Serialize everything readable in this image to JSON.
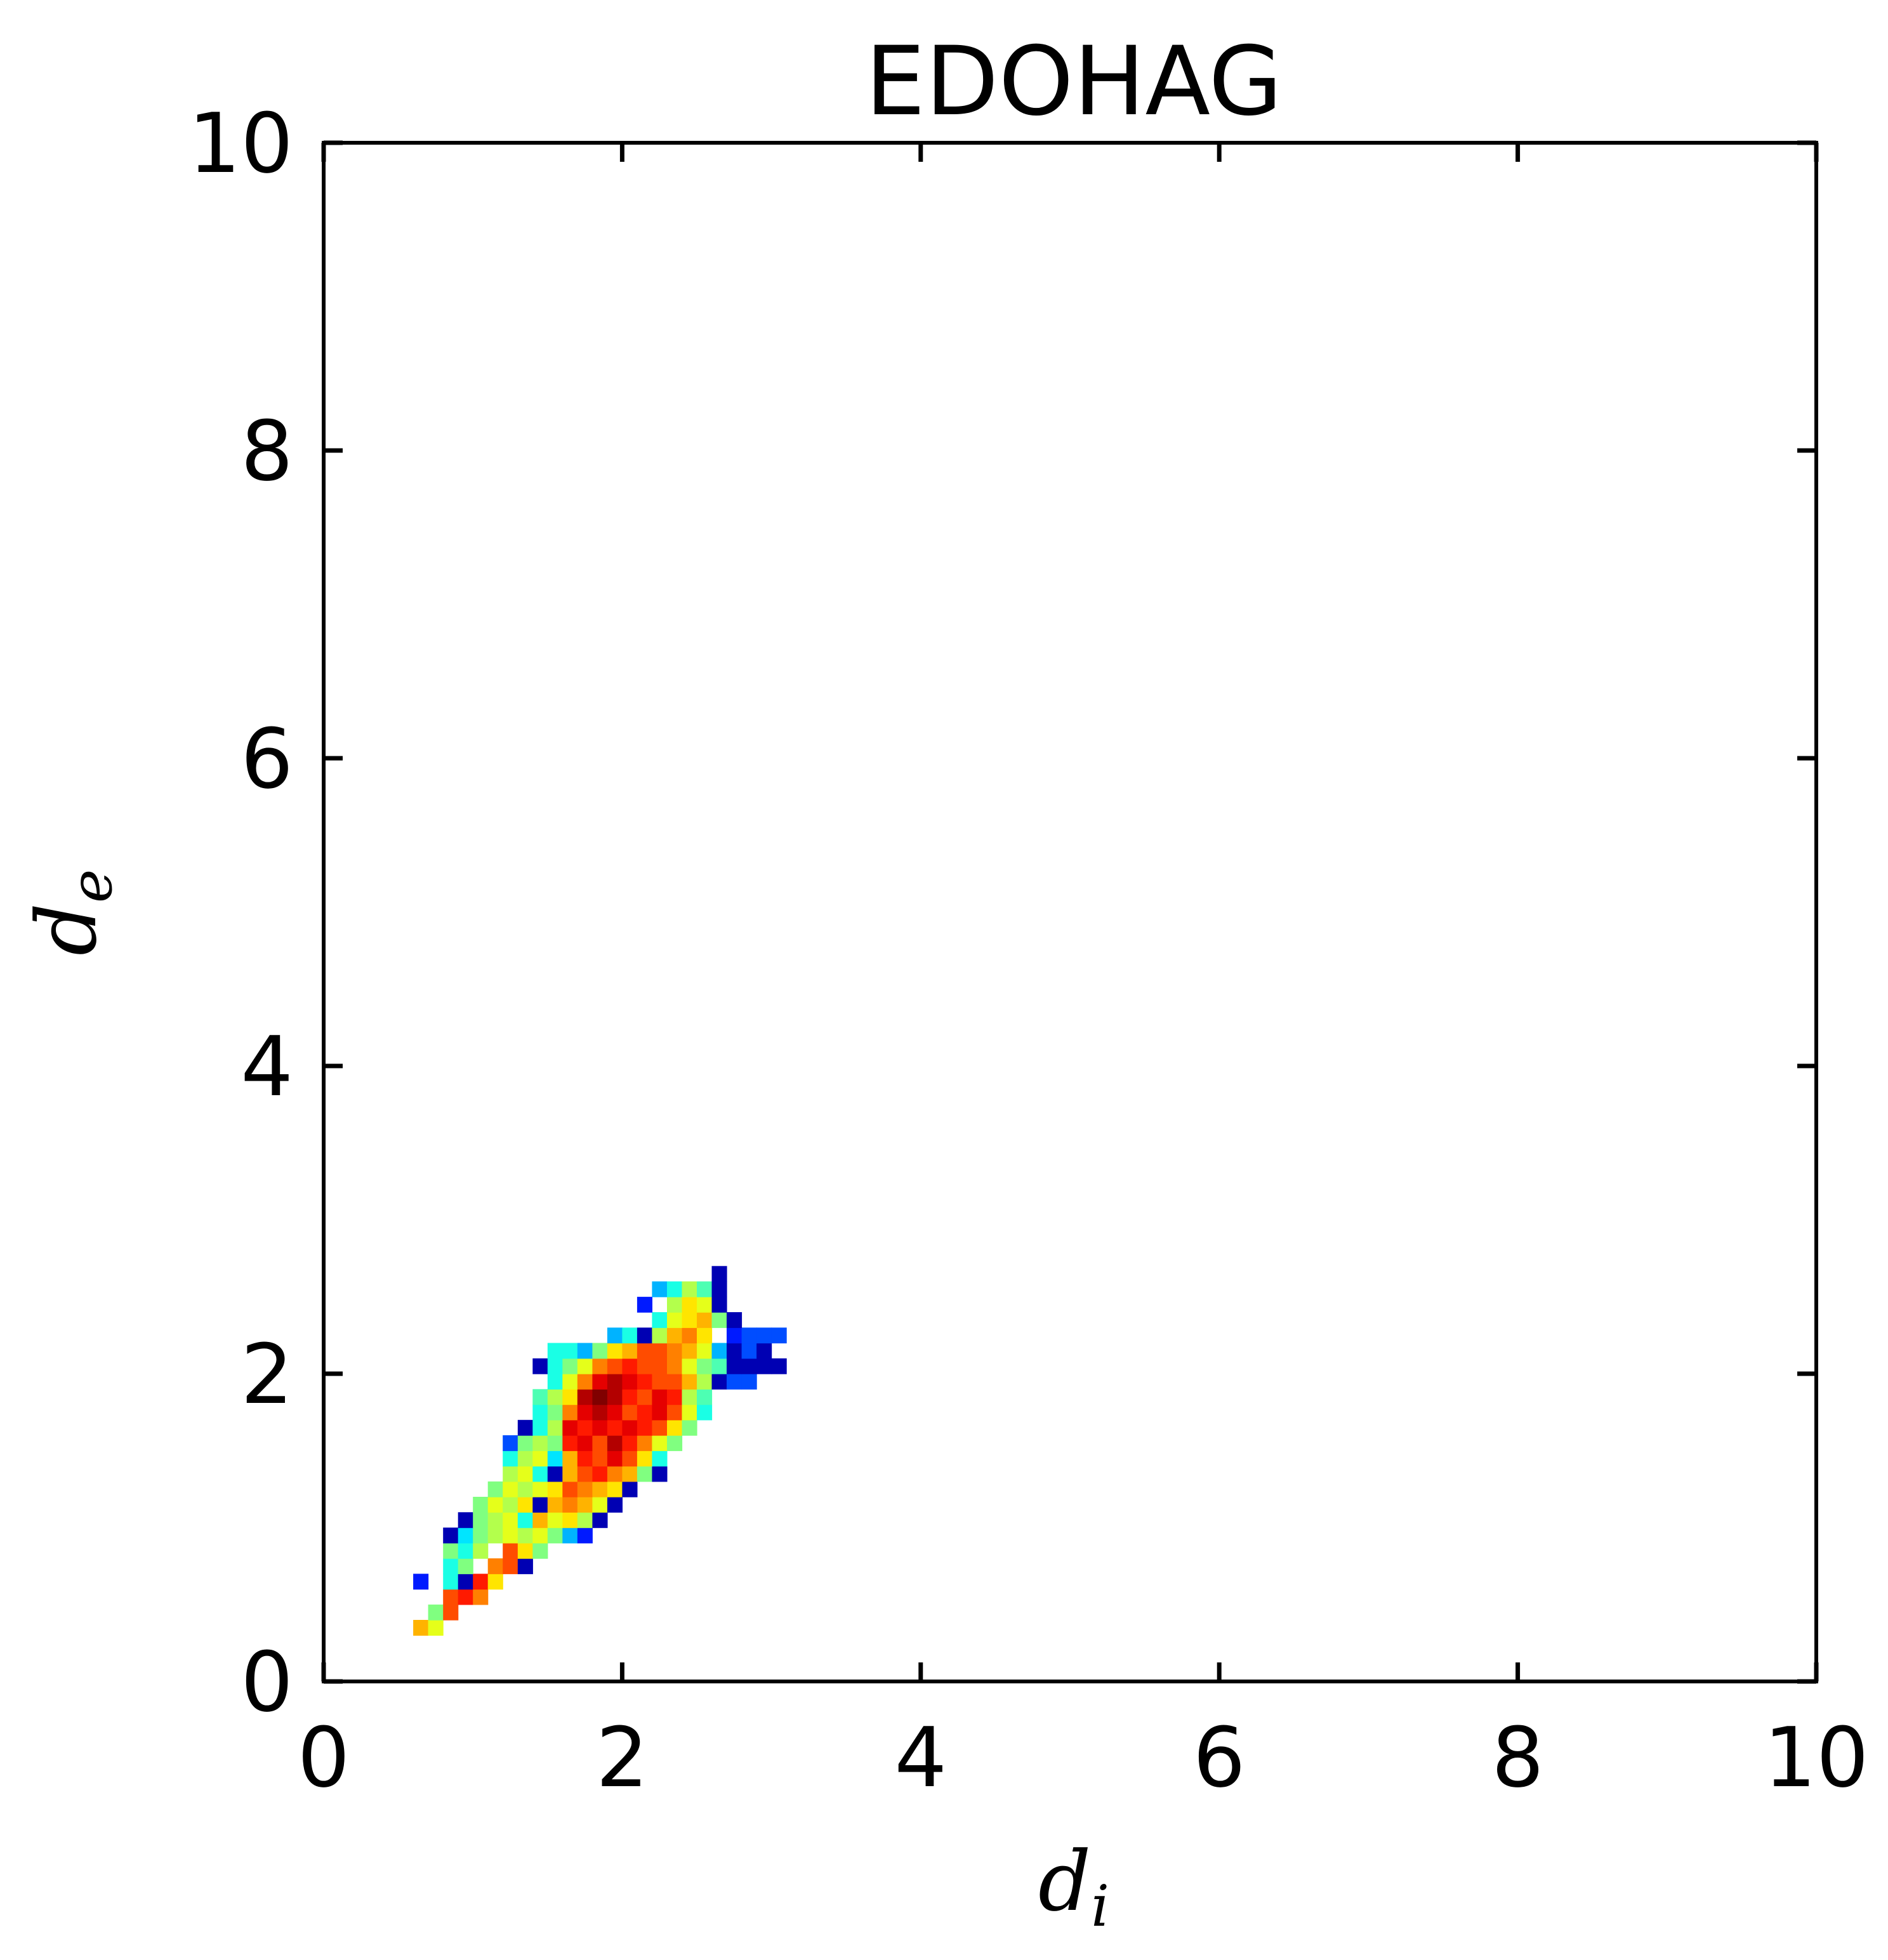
{
  "chart_data": {
    "type": "heatmap",
    "title": "EDOHAG",
    "xlabel": "d",
    "xlabel_sub": "i",
    "ylabel": "d",
    "ylabel_sub": "e",
    "xlim": [
      0,
      10
    ],
    "ylim": [
      0,
      10
    ],
    "xticks": [
      "0",
      "2",
      "4",
      "6",
      "8",
      "10"
    ],
    "yticks": [
      "0",
      "2",
      "4",
      "6",
      "8",
      "10"
    ],
    "grid": false,
    "legend": "none",
    "colormap": "jet",
    "bin_size": 0.1,
    "cells": [
      {
        "x": 0.6,
        "y": 0.3,
        "level": 0.7
      },
      {
        "x": 0.7,
        "y": 0.3,
        "level": 0.6
      },
      {
        "x": 0.7,
        "y": 0.4,
        "level": 0.5
      },
      {
        "x": 0.8,
        "y": 0.4,
        "level": 0.8
      },
      {
        "x": 0.8,
        "y": 0.5,
        "level": 0.8
      },
      {
        "x": 0.9,
        "y": 0.5,
        "level": 0.85
      },
      {
        "x": 1.0,
        "y": 0.5,
        "level": 0.75
      },
      {
        "x": 0.6,
        "y": 0.6,
        "level": 0.15
      },
      {
        "x": 0.8,
        "y": 0.6,
        "level": 0.4
      },
      {
        "x": 0.9,
        "y": 0.6,
        "level": 0.05
      },
      {
        "x": 1.0,
        "y": 0.6,
        "level": 0.85
      },
      {
        "x": 1.1,
        "y": 0.6,
        "level": 0.65
      },
      {
        "x": 0.8,
        "y": 0.7,
        "level": 0.4
      },
      {
        "x": 0.9,
        "y": 0.7,
        "level": 0.5
      },
      {
        "x": 1.1,
        "y": 0.7,
        "level": 0.75
      },
      {
        "x": 1.2,
        "y": 0.7,
        "level": 0.8
      },
      {
        "x": 1.3,
        "y": 0.7,
        "level": 0.05
      },
      {
        "x": 0.8,
        "y": 0.8,
        "level": 0.5
      },
      {
        "x": 0.9,
        "y": 0.8,
        "level": 0.4
      },
      {
        "x": 1.0,
        "y": 0.8,
        "level": 0.55
      },
      {
        "x": 1.2,
        "y": 0.8,
        "level": 0.8
      },
      {
        "x": 1.3,
        "y": 0.8,
        "level": 0.65
      },
      {
        "x": 1.4,
        "y": 0.8,
        "level": 0.5
      },
      {
        "x": 0.8,
        "y": 0.9,
        "level": 0.05
      },
      {
        "x": 0.9,
        "y": 0.9,
        "level": 0.35
      },
      {
        "x": 1.0,
        "y": 0.9,
        "level": 0.5
      },
      {
        "x": 1.1,
        "y": 0.9,
        "level": 0.55
      },
      {
        "x": 1.2,
        "y": 0.9,
        "level": 0.6
      },
      {
        "x": 1.3,
        "y": 0.9,
        "level": 0.55
      },
      {
        "x": 1.4,
        "y": 0.9,
        "level": 0.6
      },
      {
        "x": 1.5,
        "y": 0.9,
        "level": 0.5
      },
      {
        "x": 1.6,
        "y": 0.9,
        "level": 0.3
      },
      {
        "x": 1.7,
        "y": 0.9,
        "level": 0.15
      },
      {
        "x": 0.9,
        "y": 1.0,
        "level": 0.05
      },
      {
        "x": 1.0,
        "y": 1.0,
        "level": 0.5
      },
      {
        "x": 1.1,
        "y": 1.0,
        "level": 0.55
      },
      {
        "x": 1.2,
        "y": 1.0,
        "level": 0.6
      },
      {
        "x": 1.3,
        "y": 1.0,
        "level": 0.4
      },
      {
        "x": 1.4,
        "y": 1.0,
        "level": 0.7
      },
      {
        "x": 1.5,
        "y": 1.0,
        "level": 0.6
      },
      {
        "x": 1.6,
        "y": 1.0,
        "level": 0.65
      },
      {
        "x": 1.7,
        "y": 1.0,
        "level": 0.55
      },
      {
        "x": 1.8,
        "y": 1.0,
        "level": 0.05
      },
      {
        "x": 1.0,
        "y": 1.1,
        "level": 0.5
      },
      {
        "x": 1.1,
        "y": 1.1,
        "level": 0.6
      },
      {
        "x": 1.2,
        "y": 1.1,
        "level": 0.55
      },
      {
        "x": 1.3,
        "y": 1.1,
        "level": 0.65
      },
      {
        "x": 1.4,
        "y": 1.1,
        "level": 0.05
      },
      {
        "x": 1.5,
        "y": 1.1,
        "level": 0.7
      },
      {
        "x": 1.6,
        "y": 1.1,
        "level": 0.75
      },
      {
        "x": 1.7,
        "y": 1.1,
        "level": 0.7
      },
      {
        "x": 1.8,
        "y": 1.1,
        "level": 0.6
      },
      {
        "x": 1.9,
        "y": 1.1,
        "level": 0.05
      },
      {
        "x": 1.1,
        "y": 1.2,
        "level": 0.5
      },
      {
        "x": 1.2,
        "y": 1.2,
        "level": 0.6
      },
      {
        "x": 1.3,
        "y": 1.2,
        "level": 0.55
      },
      {
        "x": 1.4,
        "y": 1.2,
        "level": 0.6
      },
      {
        "x": 1.5,
        "y": 1.2,
        "level": 0.65
      },
      {
        "x": 1.6,
        "y": 1.2,
        "level": 0.8
      },
      {
        "x": 1.7,
        "y": 1.2,
        "level": 0.75
      },
      {
        "x": 1.8,
        "y": 1.2,
        "level": 0.7
      },
      {
        "x": 1.9,
        "y": 1.2,
        "level": 0.65
      },
      {
        "x": 2.0,
        "y": 1.2,
        "level": 0.05
      },
      {
        "x": 1.2,
        "y": 1.3,
        "level": 0.55
      },
      {
        "x": 1.3,
        "y": 1.3,
        "level": 0.6
      },
      {
        "x": 1.4,
        "y": 1.3,
        "level": 0.4
      },
      {
        "x": 1.5,
        "y": 1.3,
        "level": 0.05
      },
      {
        "x": 1.6,
        "y": 1.3,
        "level": 0.7
      },
      {
        "x": 1.7,
        "y": 1.3,
        "level": 0.8
      },
      {
        "x": 1.8,
        "y": 1.3,
        "level": 0.85
      },
      {
        "x": 1.9,
        "y": 1.3,
        "level": 0.75
      },
      {
        "x": 2.0,
        "y": 1.3,
        "level": 0.7
      },
      {
        "x": 2.1,
        "y": 1.3,
        "level": 0.5
      },
      {
        "x": 2.2,
        "y": 1.3,
        "level": 0.05
      },
      {
        "x": 1.2,
        "y": 1.4,
        "level": 0.4
      },
      {
        "x": 1.3,
        "y": 1.4,
        "level": 0.55
      },
      {
        "x": 1.4,
        "y": 1.4,
        "level": 0.6
      },
      {
        "x": 1.5,
        "y": 1.4,
        "level": 0.35
      },
      {
        "x": 1.6,
        "y": 1.4,
        "level": 0.7
      },
      {
        "x": 1.7,
        "y": 1.4,
        "level": 0.85
      },
      {
        "x": 1.8,
        "y": 1.4,
        "level": 0.8
      },
      {
        "x": 1.9,
        "y": 1.4,
        "level": 0.9
      },
      {
        "x": 2.0,
        "y": 1.4,
        "level": 0.8
      },
      {
        "x": 2.1,
        "y": 1.4,
        "level": 0.65
      },
      {
        "x": 2.2,
        "y": 1.4,
        "level": 0.4
      },
      {
        "x": 1.2,
        "y": 1.5,
        "level": 0.2
      },
      {
        "x": 1.3,
        "y": 1.5,
        "level": 0.5
      },
      {
        "x": 1.4,
        "y": 1.5,
        "level": 0.55
      },
      {
        "x": 1.5,
        "y": 1.5,
        "level": 0.5
      },
      {
        "x": 1.6,
        "y": 1.5,
        "level": 0.85
      },
      {
        "x": 1.7,
        "y": 1.5,
        "level": 0.9
      },
      {
        "x": 1.8,
        "y": 1.5,
        "level": 0.8
      },
      {
        "x": 1.9,
        "y": 1.5,
        "level": 0.95
      },
      {
        "x": 2.0,
        "y": 1.5,
        "level": 0.85
      },
      {
        "x": 2.1,
        "y": 1.5,
        "level": 0.75
      },
      {
        "x": 2.2,
        "y": 1.5,
        "level": 0.6
      },
      {
        "x": 2.3,
        "y": 1.5,
        "level": 0.5
      },
      {
        "x": 1.3,
        "y": 1.6,
        "level": 0.05
      },
      {
        "x": 1.4,
        "y": 1.6,
        "level": 0.4
      },
      {
        "x": 1.5,
        "y": 1.6,
        "level": 0.55
      },
      {
        "x": 1.6,
        "y": 1.6,
        "level": 0.9
      },
      {
        "x": 1.7,
        "y": 1.6,
        "level": 0.85
      },
      {
        "x": 1.8,
        "y": 1.6,
        "level": 0.9
      },
      {
        "x": 1.9,
        "y": 1.6,
        "level": 0.85
      },
      {
        "x": 2.0,
        "y": 1.6,
        "level": 0.9
      },
      {
        "x": 2.1,
        "y": 1.6,
        "level": 0.85
      },
      {
        "x": 2.2,
        "y": 1.6,
        "level": 0.8
      },
      {
        "x": 2.3,
        "y": 1.6,
        "level": 0.65
      },
      {
        "x": 2.4,
        "y": 1.6,
        "level": 0.5
      },
      {
        "x": 1.4,
        "y": 1.7,
        "level": 0.4
      },
      {
        "x": 1.5,
        "y": 1.7,
        "level": 0.5
      },
      {
        "x": 1.6,
        "y": 1.7,
        "level": 0.75
      },
      {
        "x": 1.7,
        "y": 1.7,
        "level": 0.9
      },
      {
        "x": 1.8,
        "y": 1.7,
        "level": 0.95
      },
      {
        "x": 1.9,
        "y": 1.7,
        "level": 0.9
      },
      {
        "x": 2.0,
        "y": 1.7,
        "level": 0.8
      },
      {
        "x": 2.1,
        "y": 1.7,
        "level": 0.85
      },
      {
        "x": 2.2,
        "y": 1.7,
        "level": 0.9
      },
      {
        "x": 2.3,
        "y": 1.7,
        "level": 0.8
      },
      {
        "x": 2.4,
        "y": 1.7,
        "level": 0.6
      },
      {
        "x": 2.5,
        "y": 1.7,
        "level": 0.4
      },
      {
        "x": 1.4,
        "y": 1.8,
        "level": 0.45
      },
      {
        "x": 1.5,
        "y": 1.8,
        "level": 0.55
      },
      {
        "x": 1.6,
        "y": 1.8,
        "level": 0.65
      },
      {
        "x": 1.7,
        "y": 1.8,
        "level": 0.95
      },
      {
        "x": 1.8,
        "y": 1.8,
        "level": 1.0
      },
      {
        "x": 1.9,
        "y": 1.8,
        "level": 0.95
      },
      {
        "x": 2.0,
        "y": 1.8,
        "level": 0.85
      },
      {
        "x": 2.1,
        "y": 1.8,
        "level": 0.8
      },
      {
        "x": 2.2,
        "y": 1.8,
        "level": 0.9
      },
      {
        "x": 2.3,
        "y": 1.8,
        "level": 0.85
      },
      {
        "x": 2.4,
        "y": 1.8,
        "level": 0.55
      },
      {
        "x": 2.5,
        "y": 1.8,
        "level": 0.45
      },
      {
        "x": 1.5,
        "y": 1.9,
        "level": 0.4
      },
      {
        "x": 1.6,
        "y": 1.9,
        "level": 0.6
      },
      {
        "x": 1.7,
        "y": 1.9,
        "level": 0.75
      },
      {
        "x": 1.8,
        "y": 1.9,
        "level": 0.9
      },
      {
        "x": 1.9,
        "y": 1.9,
        "level": 0.95
      },
      {
        "x": 2.0,
        "y": 1.9,
        "level": 0.9
      },
      {
        "x": 2.1,
        "y": 1.9,
        "level": 0.85
      },
      {
        "x": 2.2,
        "y": 1.9,
        "level": 0.8
      },
      {
        "x": 2.3,
        "y": 1.9,
        "level": 0.8
      },
      {
        "x": 2.4,
        "y": 1.9,
        "level": 0.7
      },
      {
        "x": 2.5,
        "y": 1.9,
        "level": 0.55
      },
      {
        "x": 2.6,
        "y": 1.9,
        "level": 0.05
      },
      {
        "x": 2.7,
        "y": 1.9,
        "level": 0.2
      },
      {
        "x": 2.8,
        "y": 1.9,
        "level": 0.2
      },
      {
        "x": 1.4,
        "y": 2.0,
        "level": 0.05
      },
      {
        "x": 1.5,
        "y": 2.0,
        "level": 0.4
      },
      {
        "x": 1.6,
        "y": 2.0,
        "level": 0.5
      },
      {
        "x": 1.7,
        "y": 2.0,
        "level": 0.6
      },
      {
        "x": 1.8,
        "y": 2.0,
        "level": 0.75
      },
      {
        "x": 1.9,
        "y": 2.0,
        "level": 0.8
      },
      {
        "x": 2.0,
        "y": 2.0,
        "level": 0.85
      },
      {
        "x": 2.1,
        "y": 2.0,
        "level": 0.8
      },
      {
        "x": 2.2,
        "y": 2.0,
        "level": 0.8
      },
      {
        "x": 2.3,
        "y": 2.0,
        "level": 0.75
      },
      {
        "x": 2.4,
        "y": 2.0,
        "level": 0.6
      },
      {
        "x": 2.5,
        "y": 2.0,
        "level": 0.5
      },
      {
        "x": 2.6,
        "y": 2.0,
        "level": 0.45
      },
      {
        "x": 2.7,
        "y": 2.0,
        "level": 0.05
      },
      {
        "x": 2.8,
        "y": 2.0,
        "level": 0.05
      },
      {
        "x": 2.9,
        "y": 2.0,
        "level": 0.05
      },
      {
        "x": 3.0,
        "y": 2.0,
        "level": 0.05
      },
      {
        "x": 1.5,
        "y": 2.1,
        "level": 0.4
      },
      {
        "x": 1.6,
        "y": 2.1,
        "level": 0.4
      },
      {
        "x": 1.7,
        "y": 2.1,
        "level": 0.3
      },
      {
        "x": 1.8,
        "y": 2.1,
        "level": 0.5
      },
      {
        "x": 1.9,
        "y": 2.1,
        "level": 0.65
      },
      {
        "x": 2.0,
        "y": 2.1,
        "level": 0.7
      },
      {
        "x": 2.1,
        "y": 2.1,
        "level": 0.8
      },
      {
        "x": 2.2,
        "y": 2.1,
        "level": 0.8
      },
      {
        "x": 2.3,
        "y": 2.1,
        "level": 0.75
      },
      {
        "x": 2.4,
        "y": 2.1,
        "level": 0.7
      },
      {
        "x": 2.5,
        "y": 2.1,
        "level": 0.6
      },
      {
        "x": 2.6,
        "y": 2.1,
        "level": 0.3
      },
      {
        "x": 2.7,
        "y": 2.1,
        "level": 0.05
      },
      {
        "x": 2.8,
        "y": 2.1,
        "level": 0.2
      },
      {
        "x": 2.9,
        "y": 2.1,
        "level": 0.05
      },
      {
        "x": 1.9,
        "y": 2.2,
        "level": 0.3
      },
      {
        "x": 2.0,
        "y": 2.2,
        "level": 0.4
      },
      {
        "x": 2.1,
        "y": 2.2,
        "level": 0.05
      },
      {
        "x": 2.2,
        "y": 2.2,
        "level": 0.55
      },
      {
        "x": 2.3,
        "y": 2.2,
        "level": 0.7
      },
      {
        "x": 2.4,
        "y": 2.2,
        "level": 0.75
      },
      {
        "x": 2.5,
        "y": 2.2,
        "level": 0.65
      },
      {
        "x": 2.7,
        "y": 2.2,
        "level": 0.15
      },
      {
        "x": 2.8,
        "y": 2.2,
        "level": 0.2
      },
      {
        "x": 2.9,
        "y": 2.2,
        "level": 0.2
      },
      {
        "x": 3.0,
        "y": 2.2,
        "level": 0.2
      },
      {
        "x": 2.2,
        "y": 2.3,
        "level": 0.4
      },
      {
        "x": 2.3,
        "y": 2.3,
        "level": 0.6
      },
      {
        "x": 2.4,
        "y": 2.3,
        "level": 0.65
      },
      {
        "x": 2.5,
        "y": 2.3,
        "level": 0.7
      },
      {
        "x": 2.6,
        "y": 2.3,
        "level": 0.5
      },
      {
        "x": 2.7,
        "y": 2.3,
        "level": 0.05
      },
      {
        "x": 2.1,
        "y": 2.4,
        "level": 0.15
      },
      {
        "x": 2.3,
        "y": 2.4,
        "level": 0.55
      },
      {
        "x": 2.4,
        "y": 2.4,
        "level": 0.65
      },
      {
        "x": 2.5,
        "y": 2.4,
        "level": 0.6
      },
      {
        "x": 2.6,
        "y": 2.4,
        "level": 0.05
      },
      {
        "x": 2.2,
        "y": 2.5,
        "level": 0.3
      },
      {
        "x": 2.3,
        "y": 2.5,
        "level": 0.4
      },
      {
        "x": 2.4,
        "y": 2.5,
        "level": 0.55
      },
      {
        "x": 2.5,
        "y": 2.5,
        "level": 0.45
      },
      {
        "x": 2.6,
        "y": 2.5,
        "level": 0.05
      },
      {
        "x": 2.6,
        "y": 2.6,
        "level": 0.05
      }
    ]
  }
}
